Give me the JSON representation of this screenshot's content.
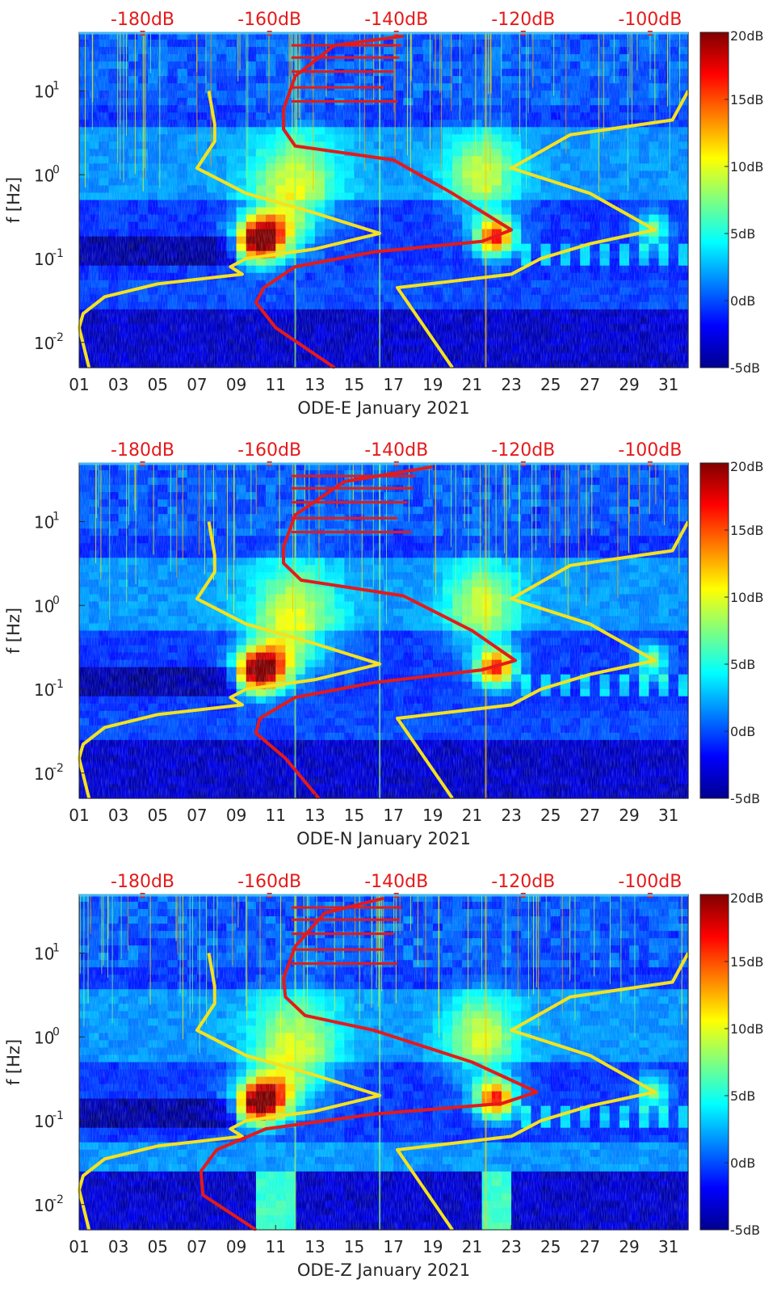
{
  "chart_data": [
    {
      "type": "heatmap",
      "title": "",
      "xlabel": "ODE-E January 2021",
      "ylabel": "f [Hz]",
      "x_ticks": [
        "01",
        "03",
        "05",
        "07",
        "09",
        "11",
        "13",
        "15",
        "17",
        "19",
        "21",
        "23",
        "25",
        "27",
        "29",
        "31"
      ],
      "x_range_days": [
        1,
        32
      ],
      "y_ticks": [
        {
          "label": "10",
          "exp": "-2",
          "value": 0.01
        },
        {
          "label": "10",
          "exp": "-1",
          "value": 0.1
        },
        {
          "label": "10",
          "exp": "0",
          "value": 1
        },
        {
          "label": "10",
          "exp": "1",
          "value": 10
        }
      ],
      "y_range_hz": [
        0.005,
        50
      ],
      "top_axis_labels": [
        "-180dB",
        "-160dB",
        "-140dB",
        "-120dB",
        "-100dB"
      ],
      "top_axis_range_db": [
        -190,
        -94
      ],
      "colorbar": {
        "labels": [
          "20dB",
          "15dB",
          "10dB",
          "5dB",
          "0dB",
          "-5dB"
        ],
        "range_db": [
          -5,
          20
        ]
      },
      "series": [
        {
          "name": "yellow-curve-left",
          "color": "#f4e21f",
          "points": [
            [
              7.6,
              10
            ],
            [
              7.9,
              4
            ],
            [
              7.9,
              2.5
            ],
            [
              7,
              1.2
            ],
            [
              9.5,
              0.6
            ],
            [
              13,
              0.35
            ],
            [
              16.3,
              0.2
            ],
            [
              13,
              0.13
            ],
            [
              9.5,
              0.1
            ],
            [
              8.7,
              0.08
            ],
            [
              9.3,
              0.065
            ],
            [
              5,
              0.05
            ],
            [
              2.3,
              0.035
            ],
            [
              1.2,
              0.022
            ],
            [
              1,
              0.015
            ],
            [
              1.5,
              0.005
            ]
          ]
        },
        {
          "name": "yellow-curve-right",
          "color": "#f4e21f",
          "points": [
            [
              32,
              10
            ],
            [
              31.2,
              4.5
            ],
            [
              26,
              3
            ],
            [
              23,
              1.2
            ],
            [
              27,
              0.6
            ],
            [
              30.3,
              0.22
            ],
            [
              27,
              0.15
            ],
            [
              24.5,
              0.1
            ],
            [
              23,
              0.065
            ],
            [
              17.2,
              0.045
            ],
            [
              20,
              0.005
            ]
          ]
        },
        {
          "name": "red-psd-curve",
          "color": "#e41a1a",
          "points": [
            [
              17.5,
              45
            ],
            [
              14,
              35
            ],
            [
              12,
              15
            ],
            [
              11.4,
              6
            ],
            [
              11.4,
              3.5
            ],
            [
              12,
              2.2
            ],
            [
              17,
              1.5
            ],
            [
              20,
              0.6
            ],
            [
              23,
              0.22
            ],
            [
              21.5,
              0.16
            ],
            [
              16,
              0.12
            ],
            [
              12,
              0.08
            ],
            [
              10.4,
              0.045
            ],
            [
              10,
              0.03
            ],
            [
              11,
              0.015
            ],
            [
              14,
              0.005
            ]
          ]
        }
      ]
    },
    {
      "type": "heatmap",
      "title": "",
      "xlabel": "ODE-N January 2021",
      "ylabel": "f [Hz]",
      "x_ticks": [
        "01",
        "03",
        "05",
        "07",
        "09",
        "11",
        "13",
        "15",
        "17",
        "19",
        "21",
        "23",
        "25",
        "27",
        "29",
        "31"
      ],
      "x_range_days": [
        1,
        32
      ],
      "y_ticks": [
        {
          "label": "10",
          "exp": "-2",
          "value": 0.01
        },
        {
          "label": "10",
          "exp": "-1",
          "value": 0.1
        },
        {
          "label": "10",
          "exp": "0",
          "value": 1
        },
        {
          "label": "10",
          "exp": "1",
          "value": 10
        }
      ],
      "y_range_hz": [
        0.005,
        50
      ],
      "top_axis_labels": [
        "-180dB",
        "-160dB",
        "-140dB",
        "-120dB",
        "-100dB"
      ],
      "top_axis_range_db": [
        -190,
        -94
      ],
      "colorbar": {
        "labels": [
          "20dB",
          "15dB",
          "10dB",
          "5dB",
          "0dB",
          "-5dB"
        ],
        "range_db": [
          -5,
          20
        ]
      },
      "series": [
        {
          "name": "yellow-curve-left",
          "color": "#f4e21f",
          "points": [
            [
              7.6,
              10
            ],
            [
              7.9,
              4
            ],
            [
              7.9,
              2.5
            ],
            [
              7,
              1.2
            ],
            [
              9.5,
              0.6
            ],
            [
              13,
              0.35
            ],
            [
              16.3,
              0.2
            ],
            [
              13,
              0.13
            ],
            [
              9.5,
              0.1
            ],
            [
              8.7,
              0.08
            ],
            [
              9.3,
              0.065
            ],
            [
              5,
              0.05
            ],
            [
              2.3,
              0.035
            ],
            [
              1.2,
              0.022
            ],
            [
              1,
              0.015
            ],
            [
              1.5,
              0.005
            ]
          ]
        },
        {
          "name": "yellow-curve-right",
          "color": "#f4e21f",
          "points": [
            [
              32,
              10
            ],
            [
              31.2,
              4.5
            ],
            [
              26,
              3
            ],
            [
              23,
              1.2
            ],
            [
              27,
              0.6
            ],
            [
              30.3,
              0.22
            ],
            [
              27,
              0.15
            ],
            [
              24.5,
              0.1
            ],
            [
              23,
              0.065
            ],
            [
              17.2,
              0.045
            ],
            [
              20,
              0.005
            ]
          ]
        },
        {
          "name": "red-psd-curve",
          "color": "#e41a1a",
          "points": [
            [
              19,
              45
            ],
            [
              14.5,
              30
            ],
            [
              12,
              12
            ],
            [
              11.4,
              5
            ],
            [
              11.4,
              3.2
            ],
            [
              12.3,
              2
            ],
            [
              17.5,
              1.3
            ],
            [
              21,
              0.5
            ],
            [
              23.2,
              0.22
            ],
            [
              21.5,
              0.17
            ],
            [
              16,
              0.12
            ],
            [
              12,
              0.08
            ],
            [
              10.2,
              0.045
            ],
            [
              10,
              0.03
            ],
            [
              11.5,
              0.015
            ],
            [
              13.2,
              0.005
            ]
          ]
        }
      ]
    },
    {
      "type": "heatmap",
      "title": "",
      "xlabel": "ODE-Z January 2021",
      "ylabel": "f [Hz]",
      "x_ticks": [
        "01",
        "03",
        "05",
        "07",
        "09",
        "11",
        "13",
        "15",
        "17",
        "19",
        "21",
        "23",
        "25",
        "27",
        "29",
        "31"
      ],
      "x_range_days": [
        1,
        32
      ],
      "y_ticks": [
        {
          "label": "10",
          "exp": "-2",
          "value": 0.01
        },
        {
          "label": "10",
          "exp": "-1",
          "value": 0.1
        },
        {
          "label": "10",
          "exp": "0",
          "value": 1
        },
        {
          "label": "10",
          "exp": "1",
          "value": 10
        }
      ],
      "y_range_hz": [
        0.005,
        50
      ],
      "top_axis_labels": [
        "-180dB",
        "-160dB",
        "-140dB",
        "-120dB",
        "-100dB"
      ],
      "top_axis_range_db": [
        -190,
        -94
      ],
      "colorbar": {
        "labels": [
          "20dB",
          "15dB",
          "10dB",
          "5dB",
          "0dB",
          "-5dB"
        ],
        "range_db": [
          -5,
          20
        ]
      },
      "series": [
        {
          "name": "yellow-curve-left",
          "color": "#f4e21f",
          "points": [
            [
              7.6,
              10
            ],
            [
              7.9,
              4
            ],
            [
              7.9,
              2.5
            ],
            [
              7,
              1.2
            ],
            [
              9.5,
              0.6
            ],
            [
              13,
              0.35
            ],
            [
              16.3,
              0.2
            ],
            [
              13,
              0.13
            ],
            [
              9.5,
              0.1
            ],
            [
              8.7,
              0.08
            ],
            [
              9.3,
              0.065
            ],
            [
              5,
              0.05
            ],
            [
              2.3,
              0.035
            ],
            [
              1.2,
              0.022
            ],
            [
              1,
              0.015
            ],
            [
              1.5,
              0.005
            ]
          ]
        },
        {
          "name": "yellow-curve-right",
          "color": "#f4e21f",
          "points": [
            [
              32,
              10
            ],
            [
              31.2,
              4.5
            ],
            [
              26,
              3
            ],
            [
              23,
              1.2
            ],
            [
              27,
              0.6
            ],
            [
              30.3,
              0.22
            ],
            [
              27,
              0.15
            ],
            [
              24.5,
              0.1
            ],
            [
              23,
              0.065
            ],
            [
              17.2,
              0.045
            ],
            [
              20,
              0.005
            ]
          ]
        },
        {
          "name": "red-psd-curve",
          "color": "#e41a1a",
          "points": [
            [
              16.5,
              45
            ],
            [
              13.5,
              30
            ],
            [
              12,
              12
            ],
            [
              11.4,
              5
            ],
            [
              11.5,
              3
            ],
            [
              12.5,
              1.8
            ],
            [
              16,
              1.2
            ],
            [
              21,
              0.5
            ],
            [
              24.3,
              0.22
            ],
            [
              22.5,
              0.16
            ],
            [
              16,
              0.12
            ],
            [
              10.5,
              0.08
            ],
            [
              8,
              0.045
            ],
            [
              7.2,
              0.025
            ],
            [
              7.3,
              0.013
            ],
            [
              10,
              0.005
            ]
          ]
        }
      ]
    }
  ]
}
